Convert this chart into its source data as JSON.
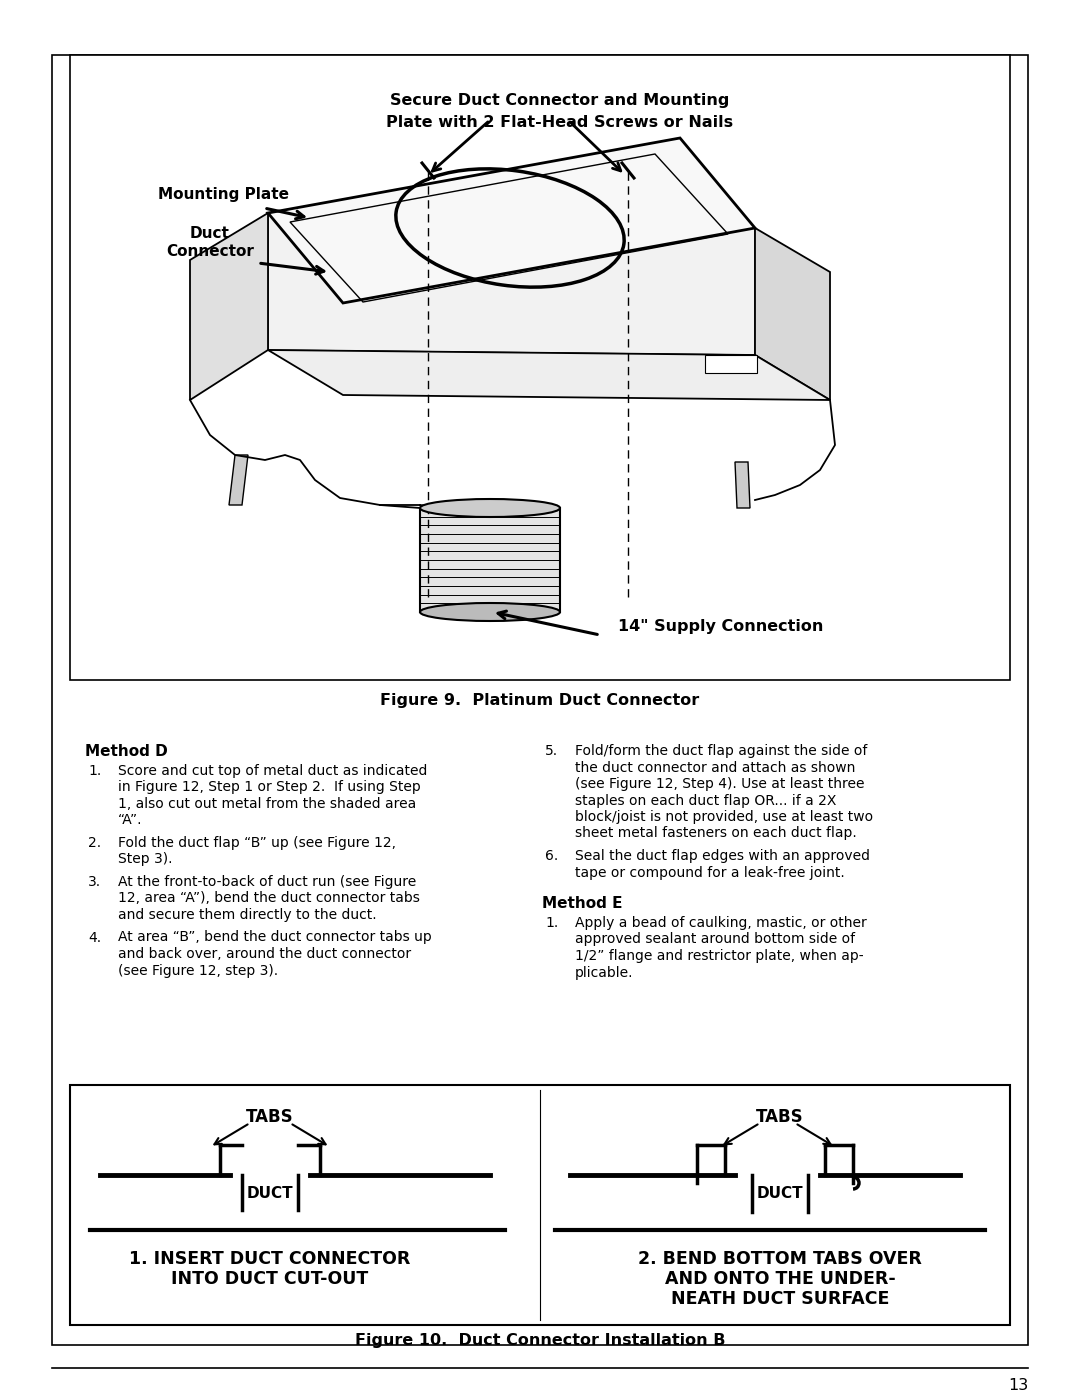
{
  "page_bg": "#ffffff",
  "fig9_title": "Figure 9.  Platinum Duct Connector",
  "fig10_title": "Figure 10.  Duct Connector Installation B",
  "page_number": "13",
  "top_label_line1": "Secure Duct Connector and Mounting",
  "top_label_line2": "Plate with 2 Flat-Head Screws or Nails",
  "mounting_plate_label": "Mounting Plate",
  "duct_connector_label1": "Duct",
  "duct_connector_label2": "Connector",
  "supply_label": "14\" Supply Connection",
  "method_d_title": "Method D",
  "method_d_item1_num": "1.",
  "method_d_item1_lines": [
    "Score and cut top of metal duct as indicated",
    "in Figure 12, Step 1 or Step 2.  If using Step",
    "1, also cut out metal from the shaded area",
    "“A”."
  ],
  "method_d_item2_num": "2.",
  "method_d_item2_lines": [
    "Fold the duct flap “B” up (see Figure 12,",
    "Step 3)."
  ],
  "method_d_item3_num": "3.",
  "method_d_item3_lines": [
    "At the front-to-back of duct run (see Figure",
    "12, area “A”), bend the duct connector tabs",
    "and secure them directly to the duct."
  ],
  "method_d_item4_num": "4.",
  "method_d_item4_lines": [
    "At area “B”, bend the duct connector tabs up",
    "and back over, around the duct connector",
    "(see Figure 12, step 3)."
  ],
  "method_d_item5_num": "5.",
  "method_d_item5_lines": [
    "Fold/form the duct flap against the side of",
    "the duct connector and attach as shown",
    "(see Figure 12, Step 4). Use at least three",
    "staples on each duct flap OR... if a 2X",
    "block/joist is not provided, use at least two",
    "sheet metal fasteners on each duct flap."
  ],
  "method_d_item6_num": "6.",
  "method_d_item6_lines": [
    "Seal the duct flap edges with an approved",
    "tape or compound for a leak-free joint."
  ],
  "method_e_title": "Method E",
  "method_e_item1_num": "1.",
  "method_e_item1_lines": [
    "Apply a bead of caulking, mastic, or other",
    "approved sealant around bottom side of",
    "1/2” flange and restrictor plate, when ap-",
    "plicable."
  ],
  "diagram1_tabs": "TABS",
  "diagram1_duct": "DUCT",
  "diagram1_title1": "1. INSERT DUCT CONNECTOR",
  "diagram1_title2": "INTO DUCT CUT-OUT",
  "diagram2_tabs": "TABS",
  "diagram2_duct": "DUCT",
  "diagram2_title1": "2. BEND BOTTOM TABS OVER",
  "diagram2_title2": "AND ONTO THE UNDER-",
  "diagram2_title3": "NEATH DUCT SURFACE"
}
